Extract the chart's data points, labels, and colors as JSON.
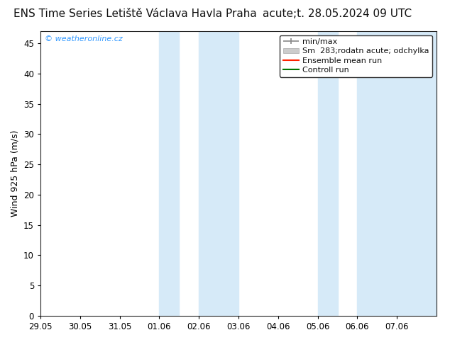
{
  "title_left": "ENS Time Series Letiště Václava Havla Praha",
  "title_right": "acute;t. 28.05.2024 09 UTC",
  "ylabel": "Wind 925 hPa (m/s)",
  "ylim": [
    0,
    47
  ],
  "yticks": [
    0,
    5,
    10,
    15,
    20,
    25,
    30,
    35,
    40,
    45
  ],
  "xlim": [
    0,
    10
  ],
  "x_tick_labels": [
    "29.05",
    "30.05",
    "31.05",
    "01.06",
    "02.06",
    "03.06",
    "04.06",
    "05.06",
    "06.06",
    "07.06"
  ],
  "shade_bands": [
    [
      3.0,
      3.5
    ],
    [
      4.0,
      5.0
    ],
    [
      7.0,
      7.5
    ],
    [
      8.0,
      10.0
    ]
  ],
  "shade_color": "#d6eaf8",
  "bg_color": "#ffffff",
  "watermark": "© weatheronline.cz",
  "watermark_color": "#3399ff",
  "legend_entries": [
    {
      "label": "min/max",
      "color": "#aaaaaa",
      "style": "minmax"
    },
    {
      "label": "Sm  283;rodatn acute; odchylka",
      "color": "#cccccc",
      "style": "band"
    },
    {
      "label": "Ensemble mean run",
      "color": "#ff2200",
      "style": "line"
    },
    {
      "label": "Controll run",
      "color": "#007700",
      "style": "line"
    }
  ],
  "title_fontsize": 11,
  "tick_fontsize": 8.5,
  "ylabel_fontsize": 9,
  "legend_fontsize": 8
}
